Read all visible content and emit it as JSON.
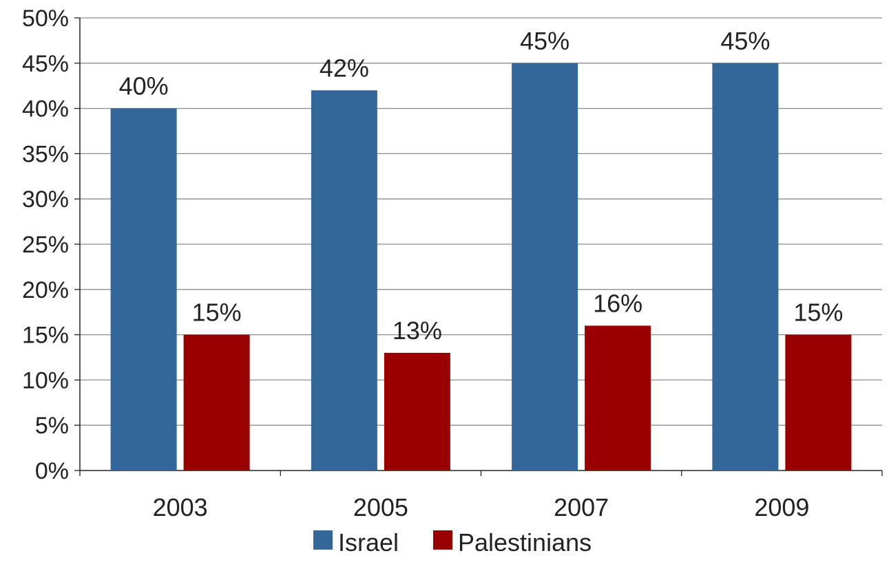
{
  "chart_data": {
    "type": "bar",
    "categories": [
      "2003",
      "2005",
      "2007",
      "2009"
    ],
    "series": [
      {
        "name": "Israel",
        "values": [
          40,
          42,
          45,
          45
        ],
        "color": "#336699"
      },
      {
        "name": "Palestinians",
        "values": [
          15,
          13,
          16,
          15
        ],
        "color": "#990000"
      }
    ],
    "data_labels": {
      "Israel": [
        "40%",
        "42%",
        "45%",
        "45%"
      ],
      "Palestinians": [
        "15%",
        "13%",
        "16%",
        "15%"
      ]
    },
    "y_ticks": [
      "0%",
      "5%",
      "10%",
      "15%",
      "20%",
      "25%",
      "30%",
      "35%",
      "40%",
      "45%",
      "50%"
    ],
    "ylim": [
      0,
      50
    ],
    "y_unit": "%",
    "title": "",
    "xlabel": "",
    "ylabel": "",
    "grid": true,
    "legend_position": "bottom"
  }
}
